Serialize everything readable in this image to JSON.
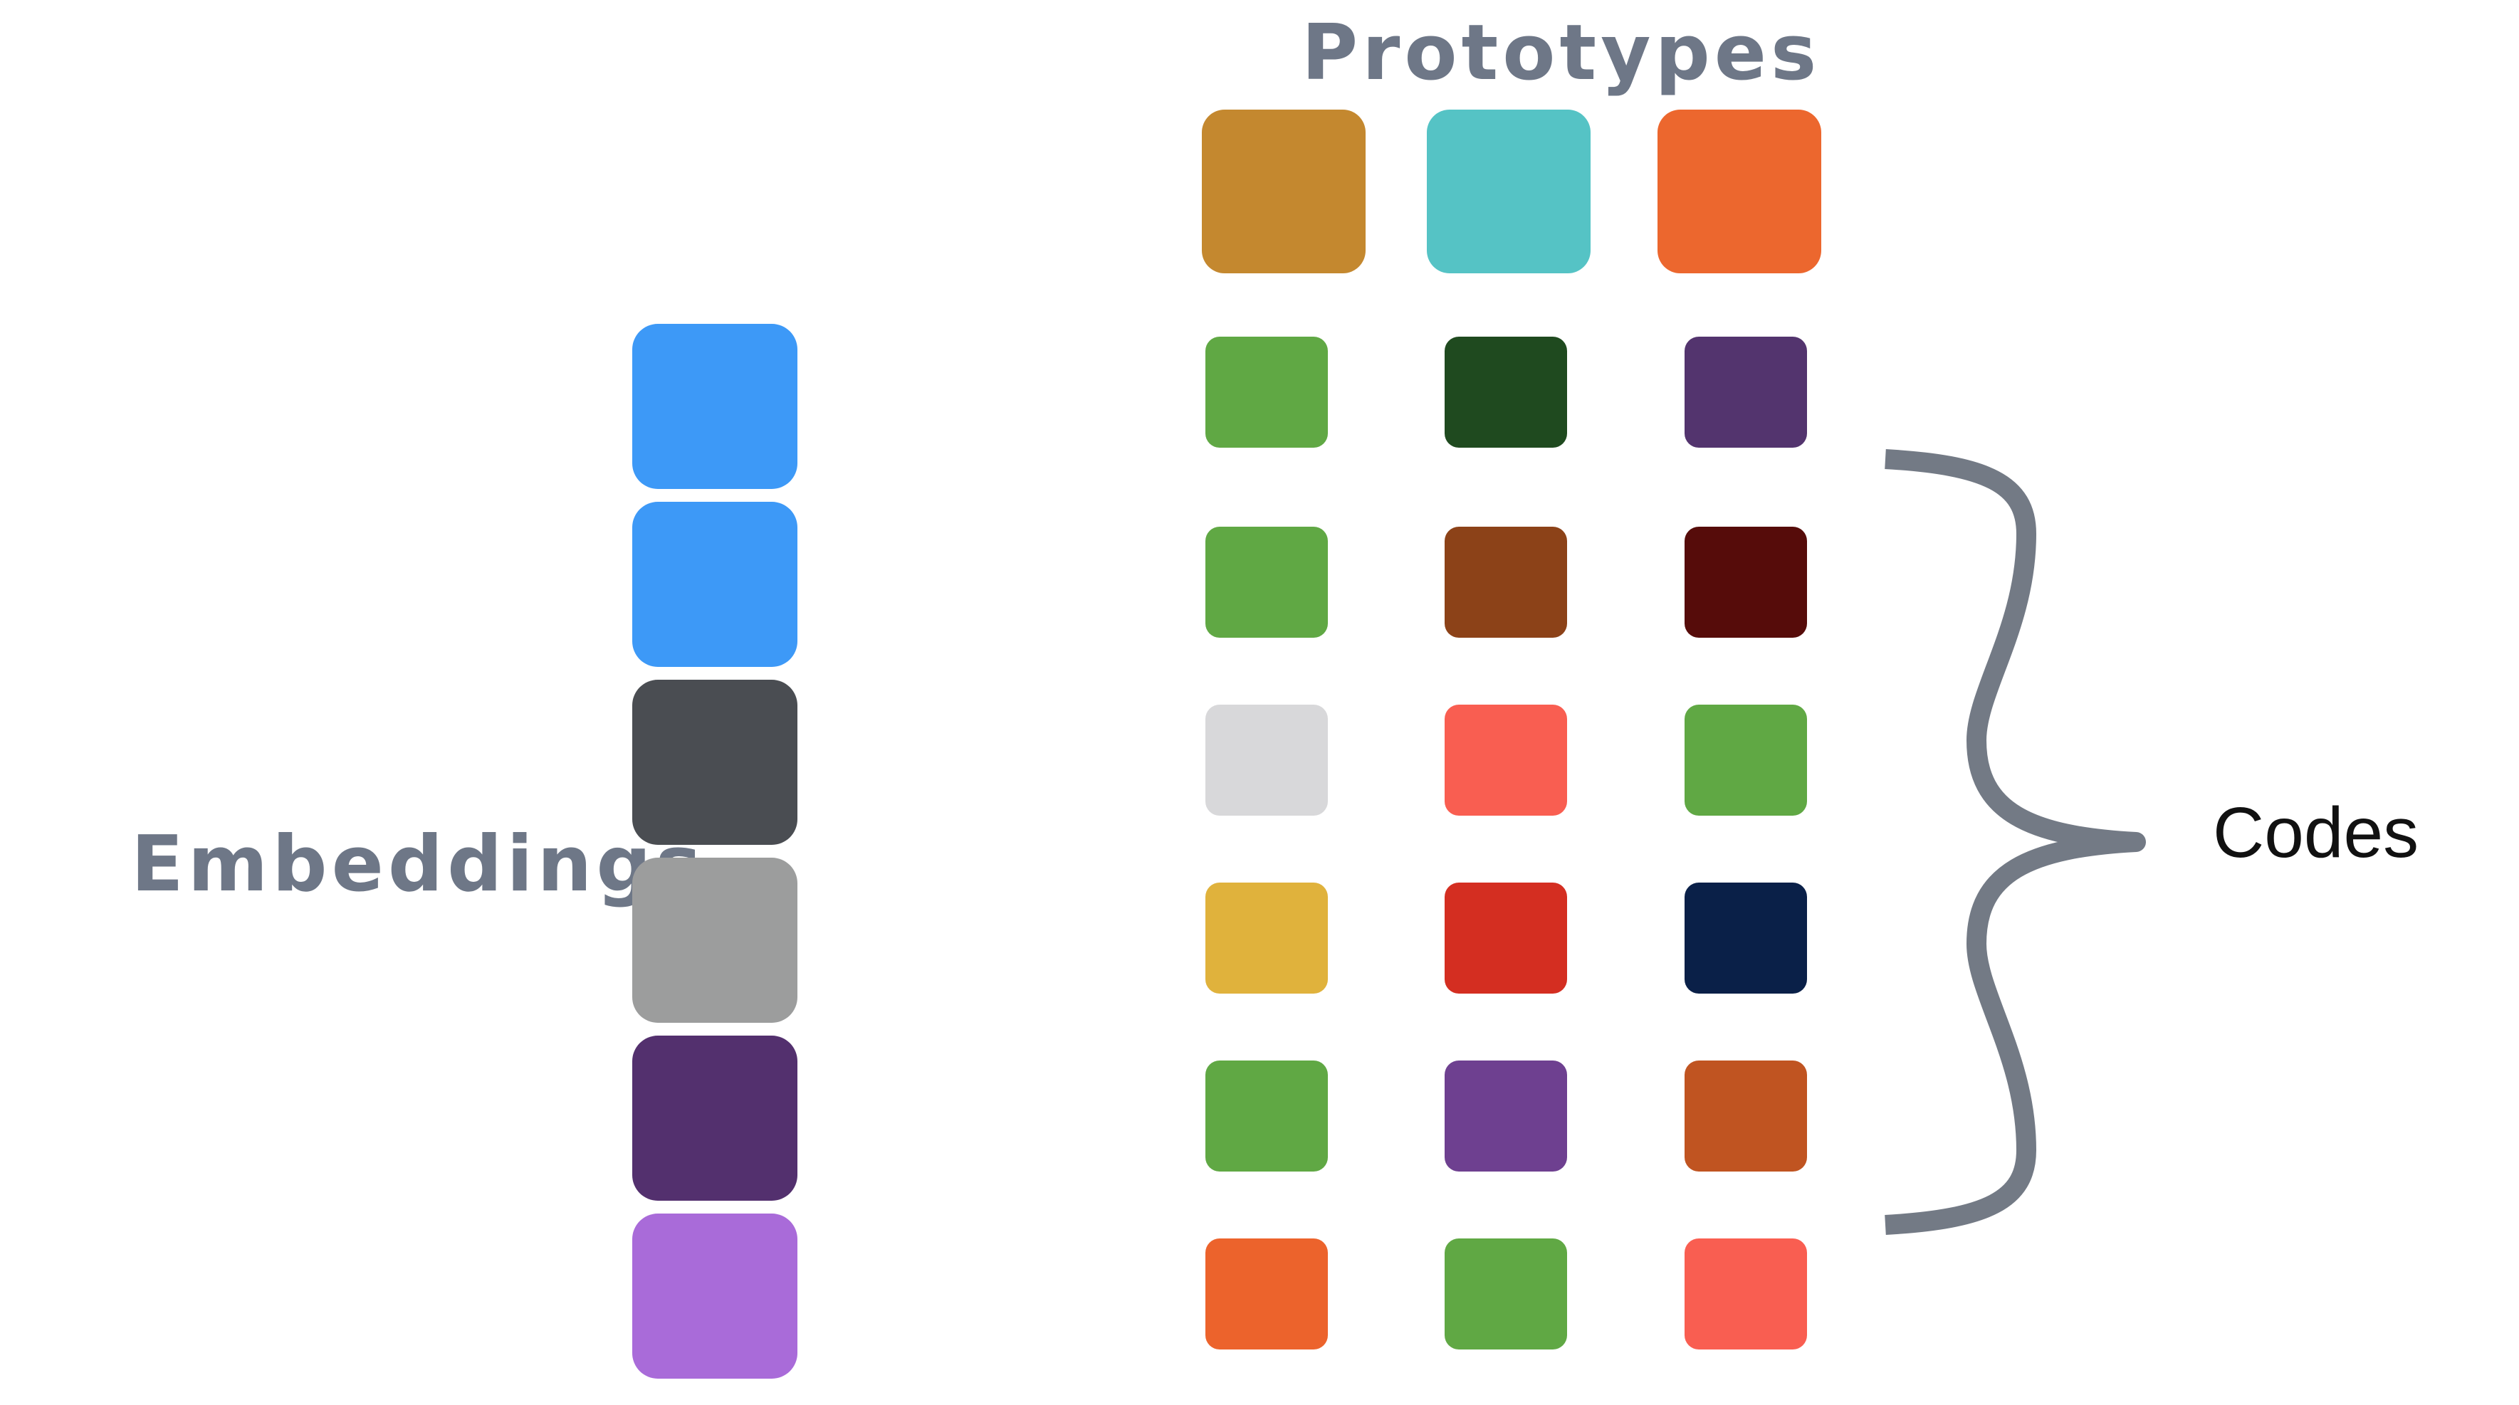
{
  "prototypes": {
    "title": "Prototypes",
    "colors": [
      "#c4882f",
      "#55c3c5",
      "#ec672e"
    ]
  },
  "embeddings": {
    "label": "Embeddings",
    "colors": [
      "#3d99f7",
      "#3d99f7",
      "#4a4d52",
      "#9c9d9d",
      "#53306e",
      "#a96bd9"
    ]
  },
  "codes": {
    "label": "Codes",
    "rows": [
      [
        "#60a844",
        "#1f4a1f",
        "#53346e"
      ],
      [
        "#60a844",
        "#8c4218",
        "#560c0a"
      ],
      [
        "#d8d8da",
        "#f95e51",
        "#60a844"
      ],
      [
        "#e0b23c",
        "#d42e21",
        "#0a2048"
      ],
      [
        "#60a844",
        "#6e4090",
        "#c05421"
      ],
      [
        "#ec632c",
        "#60a844",
        "#f95e51"
      ]
    ]
  },
  "brace_color": "#737a85"
}
